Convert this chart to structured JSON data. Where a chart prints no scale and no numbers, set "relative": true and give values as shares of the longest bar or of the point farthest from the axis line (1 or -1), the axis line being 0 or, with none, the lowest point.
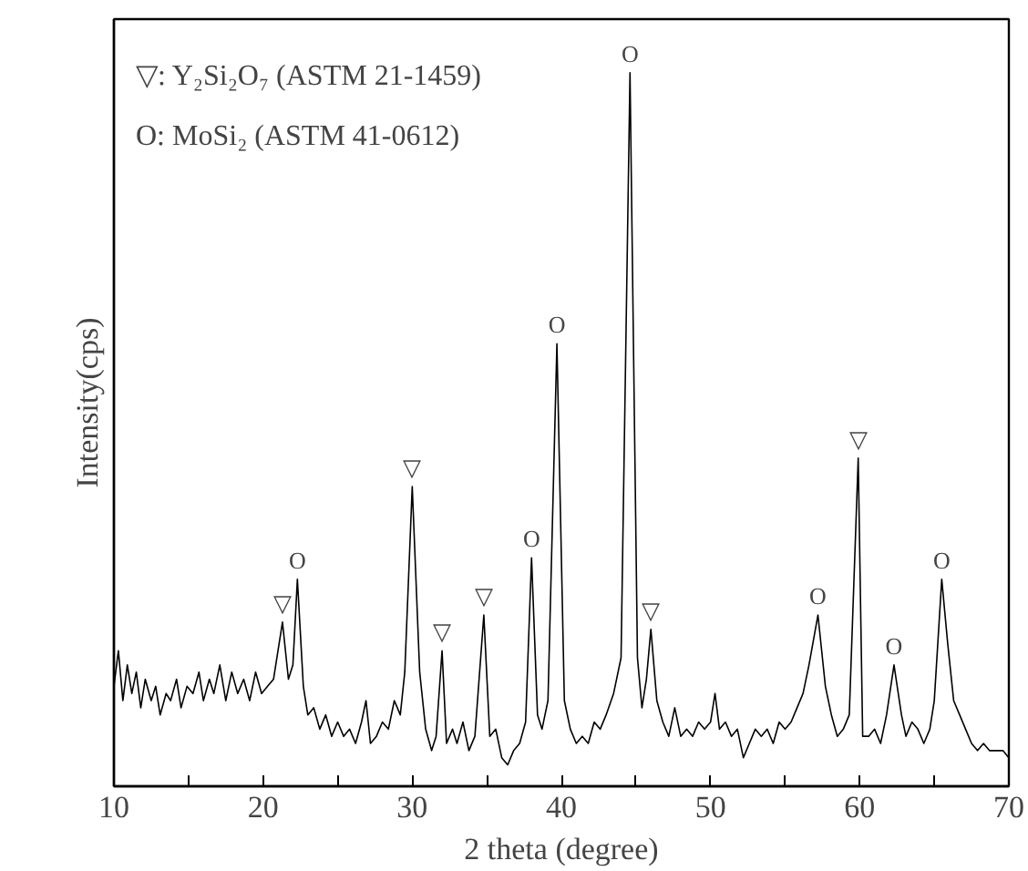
{
  "chart_data": {
    "type": "line",
    "relative": true,
    "xlabel": "2 theta (degree)",
    "ylabel": "Intensity(cps)",
    "xlim": [
      10,
      70
    ],
    "xticks": [
      10,
      {
        "value": 15,
        "label": null
      },
      20,
      {
        "value": 25,
        "label": null
      },
      30,
      {
        "value": 35,
        "label": null
      },
      40,
      {
        "value": 45,
        "label": null
      },
      50,
      {
        "value": 55,
        "label": null
      },
      60,
      {
        "value": 65,
        "label": null
      },
      70
    ],
    "tick_labels": "x",
    "grid": false,
    "marker": "none",
    "line_style": "solid",
    "series": [
      {
        "color": "#000000",
        "x": [
          10.0,
          10.3,
          10.6,
          10.9,
          11.2,
          11.5,
          11.8,
          12.1,
          12.5,
          12.8,
          13.1,
          13.5,
          13.8,
          14.2,
          14.5,
          14.9,
          15.3,
          15.7,
          16.0,
          16.4,
          16.7,
          17.1,
          17.5,
          17.9,
          18.3,
          18.7,
          19.1,
          19.5,
          19.9,
          20.3,
          20.7,
          21.3,
          21.7,
          22.0,
          22.3,
          22.7,
          23.0,
          23.4,
          23.8,
          24.2,
          24.6,
          25.0,
          25.4,
          25.8,
          26.2,
          26.6,
          26.9,
          27.2,
          27.6,
          28.0,
          28.4,
          28.8,
          29.2,
          29.5,
          30.0,
          30.5,
          30.9,
          31.3,
          31.6,
          32.0,
          32.3,
          32.7,
          33.0,
          33.4,
          33.8,
          34.2,
          34.8,
          35.2,
          35.6,
          36.0,
          36.4,
          36.8,
          37.2,
          37.6,
          38.0,
          38.4,
          38.7,
          39.1,
          39.7,
          40.2,
          40.6,
          41.0,
          41.4,
          41.8,
          42.2,
          42.6,
          43.0,
          43.5,
          44.0,
          44.6,
          45.1,
          45.4,
          45.7,
          46.0,
          46.4,
          46.8,
          47.2,
          47.6,
          48.0,
          48.4,
          48.8,
          49.2,
          49.6,
          50.0,
          50.3,
          50.6,
          51.0,
          51.4,
          51.8,
          52.2,
          52.6,
          53.0,
          53.4,
          53.8,
          54.2,
          54.6,
          55.0,
          55.4,
          55.8,
          56.2,
          56.6,
          57.2,
          57.7,
          58.1,
          58.5,
          58.9,
          59.3,
          59.9,
          60.2,
          60.6,
          61.0,
          61.4,
          61.8,
          62.3,
          62.8,
          63.1,
          63.5,
          63.9,
          64.3,
          64.7,
          65.0,
          65.5,
          65.9,
          66.3,
          66.7,
          67.1,
          67.5,
          67.9,
          68.3,
          68.7,
          69.1,
          69.6,
          70.0
        ],
        "values": [
          0.14,
          0.19,
          0.12,
          0.17,
          0.13,
          0.16,
          0.11,
          0.15,
          0.12,
          0.14,
          0.1,
          0.13,
          0.12,
          0.15,
          0.11,
          0.14,
          0.13,
          0.16,
          0.12,
          0.15,
          0.13,
          0.17,
          0.12,
          0.16,
          0.13,
          0.15,
          0.12,
          0.16,
          0.13,
          0.14,
          0.15,
          0.23,
          0.15,
          0.17,
          0.29,
          0.14,
          0.1,
          0.11,
          0.08,
          0.1,
          0.07,
          0.09,
          0.07,
          0.08,
          0.06,
          0.09,
          0.12,
          0.06,
          0.07,
          0.09,
          0.08,
          0.12,
          0.1,
          0.16,
          0.42,
          0.16,
          0.08,
          0.05,
          0.07,
          0.19,
          0.06,
          0.08,
          0.06,
          0.09,
          0.05,
          0.07,
          0.24,
          0.07,
          0.08,
          0.04,
          0.03,
          0.05,
          0.06,
          0.09,
          0.32,
          0.1,
          0.08,
          0.12,
          0.62,
          0.12,
          0.08,
          0.06,
          0.07,
          0.06,
          0.09,
          0.08,
          0.1,
          0.13,
          0.18,
          1.0,
          0.18,
          0.11,
          0.15,
          0.22,
          0.12,
          0.09,
          0.07,
          0.11,
          0.07,
          0.08,
          0.07,
          0.09,
          0.08,
          0.09,
          0.13,
          0.08,
          0.09,
          0.07,
          0.08,
          0.04,
          0.06,
          0.08,
          0.07,
          0.08,
          0.06,
          0.09,
          0.08,
          0.09,
          0.11,
          0.13,
          0.17,
          0.24,
          0.14,
          0.1,
          0.07,
          0.08,
          0.1,
          0.46,
          0.07,
          0.07,
          0.08,
          0.06,
          0.1,
          0.17,
          0.1,
          0.07,
          0.09,
          0.08,
          0.06,
          0.08,
          0.12,
          0.29,
          0.2,
          0.12,
          0.1,
          0.08,
          0.06,
          0.05,
          0.06,
          0.05,
          0.05,
          0.05,
          0.04
        ]
      }
    ],
    "annotations": [
      "▽: Y₂Si₂O₇ (ASTM 21-1459)",
      "O: MoSi₂ (ASTM 41-0612)",
      {
        "text": "▽",
        "x": 21.3,
        "y": 0.23
      },
      {
        "text": "O",
        "x": 22.3,
        "y": 0.29
      },
      {
        "text": "▽",
        "x": 30.0,
        "y": 0.42
      },
      {
        "text": "▽",
        "x": 32.0,
        "y": 0.19
      },
      {
        "text": "▽",
        "x": 34.8,
        "y": 0.24
      },
      {
        "text": "O",
        "x": 38.0,
        "y": 0.32
      },
      {
        "text": "O",
        "x": 39.7,
        "y": 0.62
      },
      {
        "text": "O",
        "x": 44.6,
        "y": 1.0
      },
      {
        "text": "▽",
        "x": 46.0,
        "y": 0.22
      },
      {
        "text": "O",
        "x": 57.2,
        "y": 0.24
      },
      {
        "text": "▽",
        "x": 59.9,
        "y": 0.46
      },
      {
        "text": "O",
        "x": 62.3,
        "y": 0.17
      },
      {
        "text": "O",
        "x": 65.5,
        "y": 0.29
      }
    ]
  }
}
